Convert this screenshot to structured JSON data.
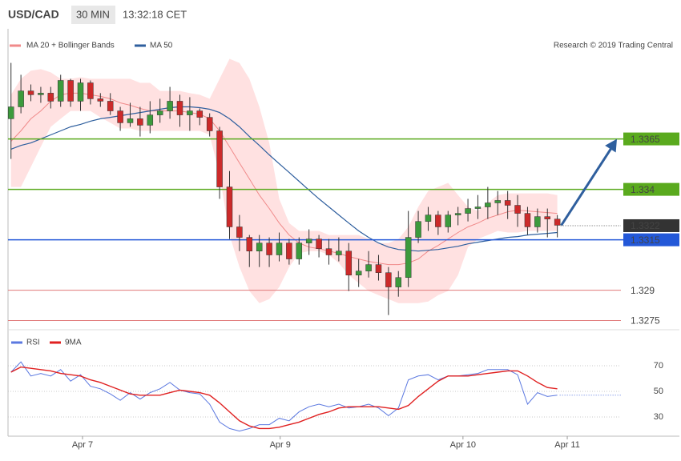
{
  "chart_data": [
    {
      "type": "candlestick",
      "title": "USD/CAD",
      "timeframe": "30 MIN",
      "time": "13:32:18 CET",
      "credit": "Research © 2019 Trading Central",
      "up_color": "#3c9a3c",
      "down_color": "#cc2a2a",
      "x": [
        0,
        1,
        2,
        3,
        4,
        5,
        6,
        7,
        8,
        9,
        10,
        11,
        12,
        13,
        14,
        15,
        16,
        17,
        18,
        19,
        20,
        21,
        22,
        23,
        24,
        25,
        26,
        27,
        28,
        29,
        30,
        31,
        32,
        33,
        34,
        35,
        36,
        37,
        38,
        39,
        40,
        41,
        42,
        43,
        44,
        45,
        46,
        47,
        48,
        49,
        50,
        51,
        52,
        53,
        54,
        55
      ],
      "open": [
        1.3375,
        1.33809,
        1.33888,
        1.33869,
        1.33877,
        1.33837,
        1.3394,
        1.33837,
        1.33928,
        1.33849,
        1.33837,
        1.33789,
        1.3373,
        1.3375,
        1.33718,
        1.33769,
        1.33789,
        1.33837,
        1.33769,
        1.33789,
        1.33757,
        1.3369,
        1.33412,
        1.33214,
        1.33162,
        1.33094,
        1.33134,
        1.33075,
        1.33134,
        1.33055,
        1.33134,
        1.33154,
        1.33106,
        1.33075,
        1.33094,
        1.32975,
        1.32995,
        1.33027,
        1.32987,
        1.32916,
        1.32963,
        1.33162,
        1.33241,
        1.33273,
        1.33214,
        1.33273,
        1.33281,
        1.33305,
        1.33313,
        1.33333,
        1.33345,
        1.33321,
        1.33281,
        1.33214,
        1.33265,
        1.33253
      ],
      "high": [
        1.34027,
        1.33968,
        1.3392,
        1.33908,
        1.33908,
        1.33968,
        1.33948,
        1.33948,
        1.3394,
        1.33877,
        1.33877,
        1.33809,
        1.33829,
        1.33809,
        1.33837,
        1.33849,
        1.33908,
        1.33869,
        1.33857,
        1.33801,
        1.33777,
        1.3371,
        1.33491,
        1.33273,
        1.33174,
        1.33174,
        1.33162,
        1.33186,
        1.33154,
        1.33162,
        1.33202,
        1.33174,
        1.33154,
        1.33162,
        1.33134,
        1.33055,
        1.33094,
        1.33075,
        1.33015,
        1.32995,
        1.33293,
        1.33293,
        1.33313,
        1.33293,
        1.33293,
        1.33313,
        1.33353,
        1.33372,
        1.33412,
        1.33392,
        1.33392,
        1.33372,
        1.33313,
        1.33305,
        1.33305,
        1.33273
      ],
      "low": [
        1.33551,
        1.33777,
        1.33837,
        1.33829,
        1.33801,
        1.33809,
        1.33809,
        1.33789,
        1.33821,
        1.33809,
        1.33769,
        1.3369,
        1.3371,
        1.33662,
        1.33678,
        1.3373,
        1.3375,
        1.3371,
        1.3369,
        1.33718,
        1.33662,
        1.33353,
        1.33154,
        1.33094,
        1.33015,
        1.33015,
        1.33015,
        1.33043,
        1.33027,
        1.33027,
        1.33075,
        1.33063,
        1.33027,
        1.33043,
        1.32896,
        1.32916,
        1.32963,
        1.32948,
        1.32777,
        1.32868,
        1.32916,
        1.33134,
        1.33194,
        1.33174,
        1.33186,
        1.33222,
        1.33241,
        1.33253,
        1.33253,
        1.33273,
        1.33253,
        1.33214,
        1.33174,
        1.33186,
        1.33162,
        1.33162
      ],
      "close": [
        1.33809,
        1.33888,
        1.33869,
        1.33877,
        1.33837,
        1.3394,
        1.33837,
        1.33928,
        1.33849,
        1.33837,
        1.33789,
        1.3373,
        1.3375,
        1.33718,
        1.33769,
        1.33789,
        1.33837,
        1.33769,
        1.33789,
        1.33757,
        1.3369,
        1.33412,
        1.33214,
        1.33162,
        1.33094,
        1.33134,
        1.33075,
        1.33134,
        1.33055,
        1.33134,
        1.33154,
        1.33106,
        1.33075,
        1.33094,
        1.32975,
        1.32995,
        1.33027,
        1.32987,
        1.32916,
        1.32963,
        1.33162,
        1.33241,
        1.33273,
        1.33214,
        1.33273,
        1.33281,
        1.33305,
        1.33313,
        1.33333,
        1.33345,
        1.33321,
        1.33281,
        1.33214,
        1.33265,
        1.33253,
        1.33222
      ],
      "series": [
        {
          "name": "MA 20 + Bollinger Bands",
          "color": "#f08a8a",
          "band_color": "#ffe1e1",
          "values": [
            1.33638,
            1.3369,
            1.3375,
            1.33789,
            1.33837,
            1.33869,
            1.33877,
            1.33877,
            1.33869,
            1.33861,
            1.33849,
            1.33829,
            1.33817,
            1.33801,
            1.33789,
            1.33789,
            1.33789,
            1.33789,
            1.33781,
            1.33773,
            1.3375,
            1.3369,
            1.33611,
            1.33531,
            1.33452,
            1.33372,
            1.33305,
            1.33233,
            1.33174,
            1.33134,
            1.33114,
            1.33106,
            1.33094,
            1.33083,
            1.33067,
            1.33055,
            1.33043,
            1.33035,
            1.33027,
            1.33027,
            1.33035,
            1.33055,
            1.33094,
            1.33122,
            1.33154,
            1.33186,
            1.33214,
            1.33233,
            1.33257,
            1.33273,
            1.33289,
            1.33297,
            1.33293,
            1.33289,
            1.33285,
            1.33281
          ],
          "upper": [
            1.33869,
            1.33948,
            1.33988,
            1.33996,
            1.3398,
            1.33948,
            1.33948,
            1.33956,
            1.33948,
            1.33948,
            1.33948,
            1.33948,
            1.33948,
            1.33928,
            1.33928,
            1.33888,
            1.33888,
            1.33888,
            1.33877,
            1.33869,
            1.33849,
            1.33948,
            1.34047,
            1.34027,
            1.33948,
            1.33809,
            1.3363,
            1.33353,
            1.33233,
            1.33194,
            1.33194,
            1.33194,
            1.33174,
            1.33174,
            1.33174,
            1.33174,
            1.33154,
            1.33134,
            1.33134,
            1.33154,
            1.33214,
            1.33313,
            1.33392,
            1.33412,
            1.33432,
            1.33372,
            1.33313,
            1.33293,
            1.33333,
            1.33372,
            1.3338,
            1.3338,
            1.3338,
            1.3338,
            1.3338,
            1.33372
          ],
          "lower": [
            1.33412,
            1.33412,
            1.33511,
            1.33611,
            1.3371,
            1.3375,
            1.33789,
            1.33789,
            1.33789,
            1.33757,
            1.3373,
            1.33702,
            1.33702,
            1.3369,
            1.3369,
            1.3369,
            1.3369,
            1.3369,
            1.3369,
            1.3369,
            1.3367,
            1.33472,
            1.33174,
            1.33015,
            1.32896,
            1.32836,
            1.32856,
            1.32916,
            1.33015,
            1.33083,
            1.33094,
            1.33094,
            1.33075,
            1.33035,
            1.32975,
            1.32936,
            1.32896,
            1.32876,
            1.32856,
            1.32836,
            1.32836,
            1.32836,
            1.32844,
            1.32876,
            1.32896,
            1.32975,
            1.33114,
            1.33154,
            1.33174,
            1.33194,
            1.33186,
            1.33186,
            1.33194,
            1.33194,
            1.33194,
            1.33194
          ]
        },
        {
          "name": "MA 50",
          "color": "#2f5f9e",
          "values": [
            1.33599,
            1.33618,
            1.3363,
            1.3365,
            1.3367,
            1.3369,
            1.3371,
            1.33722,
            1.33738,
            1.3375,
            1.33757,
            1.33765,
            1.33773,
            1.33781,
            1.33789,
            1.33797,
            1.33805,
            1.33809,
            1.33809,
            1.33805,
            1.33797,
            1.33781,
            1.3375,
            1.3371,
            1.33662,
            1.33618,
            1.33571,
            1.33527,
            1.33484,
            1.3344,
            1.33396,
            1.33353,
            1.33313,
            1.33273,
            1.33233,
            1.33194,
            1.33162,
            1.33134,
            1.33114,
            1.33102,
            1.33098,
            1.33094,
            1.33098,
            1.33102,
            1.3311,
            1.33118,
            1.3313,
            1.33138,
            1.33146,
            1.33154,
            1.33162,
            1.33166,
            1.33174,
            1.33178,
            1.33182,
            1.33186
          ]
        }
      ],
      "levels": [
        {
          "value": 1.3365,
          "color": "#5aaa1e",
          "label_style": "box"
        },
        {
          "value": 1.334,
          "color": "#5aaa1e",
          "label_style": "box"
        },
        {
          "value": 1.3315,
          "color": "#2358d8",
          "label_style": "box"
        },
        {
          "value": 1.329,
          "color": "#e07a7a",
          "label_style": "text"
        },
        {
          "value": 1.3275,
          "color": "#e07a7a",
          "label_style": "text"
        }
      ],
      "last_price": 1.3322,
      "last_price_color": "#333333",
      "arrow_color": "#2f5f9e",
      "ylim": [
        1.3272,
        1.3418
      ],
      "xlim": [
        -0.3,
        61.4
      ],
      "xticks": [
        {
          "value": 7.2,
          "label": "Apr 7"
        },
        {
          "value": 27.1,
          "label": "Apr 9"
        },
        {
          "value": 45.5,
          "label": "Apr 10"
        },
        {
          "value": 56,
          "label": "Apr 11"
        }
      ]
    },
    {
      "type": "line",
      "series": [
        {
          "name": "RSI",
          "color": "#5b78e0",
          "values": [
            65,
            73,
            62,
            64,
            62,
            67,
            58,
            63,
            54,
            52,
            48,
            43,
            49,
            44,
            49,
            52,
            57,
            51,
            49,
            48,
            40,
            26,
            21,
            19,
            21,
            24,
            24,
            29,
            27,
            34,
            38,
            40,
            38,
            40,
            37,
            38,
            40,
            37,
            31,
            37,
            59,
            62,
            63,
            59,
            62,
            62,
            63,
            64,
            67,
            67,
            67,
            63,
            40,
            49,
            46,
            47
          ]
        },
        {
          "name": "9MA",
          "color": "#e02020",
          "values": [
            65,
            69,
            68,
            67,
            66,
            64,
            63,
            62,
            59,
            57,
            54,
            51,
            48,
            47,
            47,
            47,
            49,
            51,
            50,
            49,
            47,
            41,
            34,
            27,
            23,
            21,
            21,
            22,
            24,
            26,
            29,
            32,
            34,
            37,
            38,
            38,
            38,
            38,
            37,
            36,
            39,
            46,
            52,
            58,
            62,
            62,
            62,
            63,
            64,
            65,
            66,
            66,
            62,
            57,
            53,
            52
          ]
        }
      ],
      "ylim": [
        15,
        95
      ],
      "yticks": [
        30,
        50,
        70
      ]
    }
  ]
}
